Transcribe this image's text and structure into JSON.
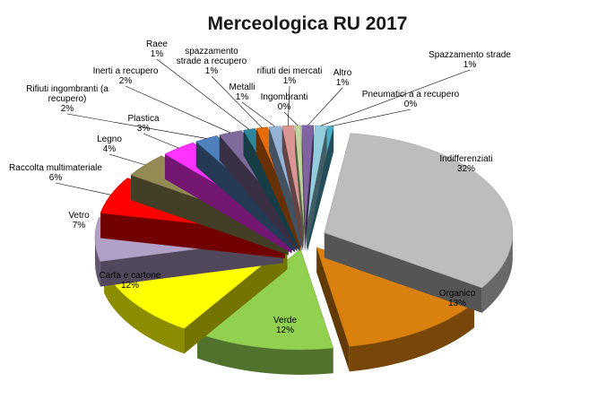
{
  "chart_data": {
    "type": "pie",
    "title": "Merceologica RU 2017",
    "slices": [
      {
        "label": "Indifferenziati",
        "value_label": "32%",
        "value": 32,
        "color": "#bdbdbd"
      },
      {
        "label": "Organico",
        "value_label": "13%",
        "value": 13,
        "color": "#d9800f"
      },
      {
        "label": "Verde",
        "value_label": "12%",
        "value": 12,
        "color": "#92d050"
      },
      {
        "label": "Carta e cartone",
        "value_label": "12%",
        "value": 12,
        "color": "#ffff00"
      },
      {
        "label": "Vetro",
        "value_label": "7%",
        "value": 7,
        "color": "#b1a0c7"
      },
      {
        "label": "Raccolta multimateriale",
        "value_label": "6%",
        "value": 6,
        "color": "#ff0000"
      },
      {
        "label": "Legno",
        "value_label": "4%",
        "value": 4,
        "color": "#948a54"
      },
      {
        "label": "Plastica",
        "value_label": "3%",
        "value": 3,
        "color": "#ff33ff"
      },
      {
        "label": "Rifiuti ingombranti (a recupero)",
        "value_label": "2%",
        "value": 2,
        "color": "#4f81bd"
      },
      {
        "label": "Inerti a recupero",
        "value_label": "2%",
        "value": 2,
        "color": "#7f6b9b"
      },
      {
        "label": "Raee",
        "value_label": "1%",
        "value": 1,
        "color": "#31859c"
      },
      {
        "label": "spazzamento strade a recupero",
        "value_label": "1%",
        "value": 1,
        "color": "#e46c0a"
      },
      {
        "label": "Metalli",
        "value_label": "1%",
        "value": 1,
        "color": "#95b3d7"
      },
      {
        "label": "rifiuti dei mercati",
        "value_label": "1%",
        "value": 1,
        "color": "#d99694"
      },
      {
        "label": "Ingombranti",
        "value_label": "0%",
        "value": 0.5,
        "color": "#c3d69b"
      },
      {
        "label": "Altro",
        "value_label": "1%",
        "value": 1,
        "color": "#8064a2"
      },
      {
        "label": "Spazzamento strade",
        "value_label": "1%",
        "value": 1,
        "color": "#93cddd"
      },
      {
        "label": "Pneumatici a a recupero",
        "value_label": "0%",
        "value": 0.5,
        "color": "#4bacc6"
      }
    ]
  }
}
